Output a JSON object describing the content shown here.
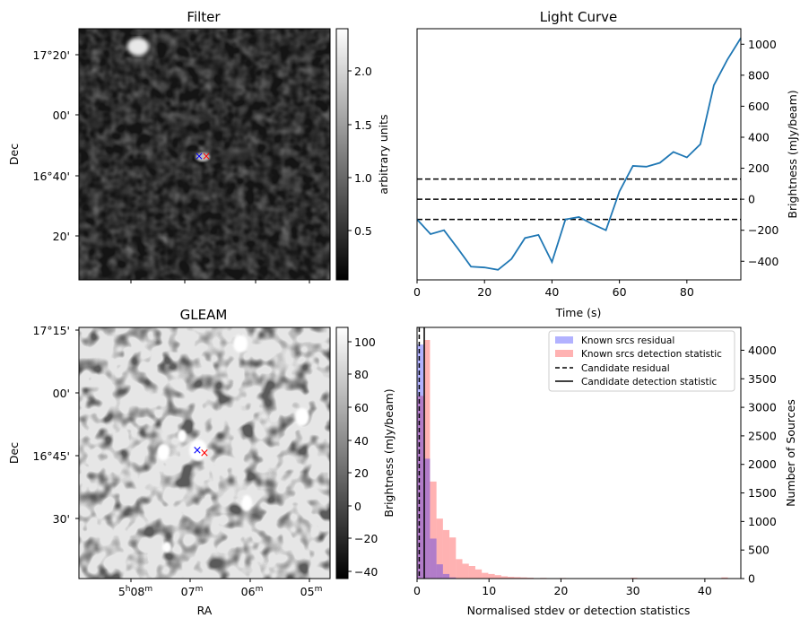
{
  "panels": {
    "filter": {
      "title": "Filter",
      "ylabel": "Dec",
      "yticks": [
        "17°20'",
        "00'",
        "16°40'",
        "20'"
      ],
      "colorbar": {
        "label": "arbitrary units",
        "ticks": [
          "2.0",
          "1.5",
          "1.0",
          "0.5"
        ]
      }
    },
    "gleam": {
      "title": "GLEAM",
      "ylabel": "Dec",
      "xlabel": "RA",
      "yticks": [
        "17°15'",
        "00'",
        "16°45'",
        "30'"
      ],
      "xticks": [
        "5h08m",
        "07m",
        "06m",
        "05m"
      ],
      "colorbar": {
        "label": "Brightness (mJy/beam)",
        "ticks": [
          "100",
          "80",
          "60",
          "40",
          "20",
          "0",
          "−20",
          "−40"
        ]
      }
    }
  },
  "markers": {
    "blue": "#0000ff",
    "red": "#ff0000"
  },
  "chart_data": [
    {
      "id": "light-curve",
      "type": "line",
      "title": "Light Curve",
      "xlabel": "Time (s)",
      "ylabel": "Brightness (mJy/beam)",
      "xlim": [
        0,
        96
      ],
      "ylim": [
        -520,
        1100
      ],
      "xticks": [
        "0",
        "20",
        "40",
        "60",
        "80"
      ],
      "yticks": [
        "1000",
        "800",
        "600",
        "400",
        "200",
        "0",
        "−200",
        "−400"
      ],
      "line_color": "#1f77b4",
      "x": [
        0,
        4,
        8,
        12,
        16,
        20,
        24,
        28,
        32,
        36,
        40,
        44,
        48,
        52,
        56,
        60,
        64,
        68,
        72,
        76,
        80,
        84,
        88,
        92,
        96
      ],
      "y": [
        -130,
        -225,
        -200,
        -315,
        -435,
        -440,
        -455,
        -385,
        -250,
        -230,
        -405,
        -130,
        -115,
        -160,
        -200,
        50,
        215,
        210,
        235,
        305,
        270,
        355,
        735,
        900,
        1040
      ],
      "hlines": [
        130,
        0,
        -130
      ],
      "hline_style": "dashed"
    },
    {
      "id": "statistics-histogram",
      "type": "bar",
      "xlabel": "Normalised stdev or detection statistics",
      "ylabel": "Number of Sources",
      "xlim": [
        0,
        45
      ],
      "ylim": [
        0,
        4400
      ],
      "xticks": [
        "0",
        "10",
        "20",
        "30",
        "40"
      ],
      "yticks": [
        "4000",
        "3500",
        "3000",
        "2500",
        "2000",
        "1500",
        "1000",
        "500",
        "0"
      ],
      "bin_width": 0.9,
      "series": [
        {
          "name": "Known srcs residual",
          "color": "#0000ff",
          "bin_starts": [
            0,
            0.9,
            1.8,
            2.7,
            3.6,
            4.5
          ],
          "values": [
            4100,
            2100,
            700,
            250,
            80,
            20
          ]
        },
        {
          "name": "Known srcs detection statistic",
          "color": "#ff0000",
          "bin_starts": [
            0,
            0.9,
            1.8,
            2.7,
            3.6,
            4.5,
            5.4,
            6.3,
            7.2,
            8.1,
            9.0,
            9.9,
            10.8,
            11.7,
            12.6,
            13.5,
            14.4,
            15.3,
            17.1,
            19.8,
            29.7,
            42.3
          ],
          "values": [
            3200,
            4180,
            1700,
            1050,
            850,
            720,
            340,
            260,
            220,
            160,
            100,
            80,
            60,
            40,
            30,
            25,
            20,
            15,
            12,
            10,
            15,
            20
          ]
        }
      ],
      "vlines": [
        {
          "name": "Candidate residual",
          "x": 0.3,
          "style": "dashed"
        },
        {
          "name": "Candidate detection statistic",
          "x": 1.0,
          "style": "solid"
        }
      ],
      "legend_position": "top-right"
    }
  ]
}
